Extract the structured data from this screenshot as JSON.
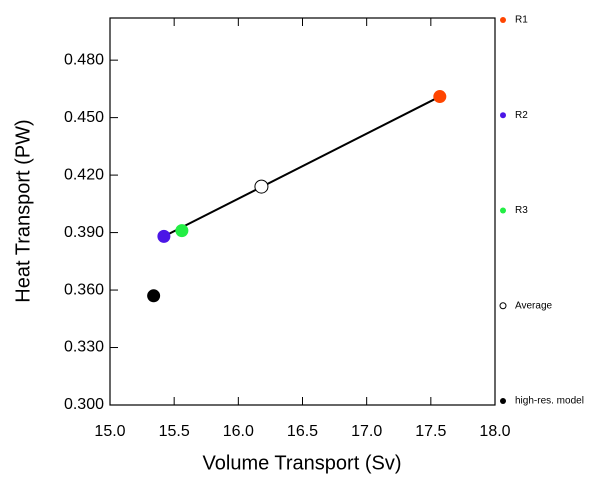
{
  "chart_data": {
    "type": "scatter",
    "x_label": "Volume Transport (Sv)",
    "y_label": "Heat Transport (PW)",
    "xlim": [
      15.0,
      18.0
    ],
    "ylim": [
      0.3,
      0.502
    ],
    "xticks": [
      {
        "value": 15,
        "label": "15.0"
      },
      {
        "value": 15.5,
        "label": "15.5"
      },
      {
        "value": 16,
        "label": "16.0"
      },
      {
        "value": 16.5,
        "label": "16.5"
      },
      {
        "value": 17,
        "label": "17.0"
      },
      {
        "value": 17.5,
        "label": "17.5"
      },
      {
        "value": 18,
        "label": "18.0"
      }
    ],
    "yticks": [
      {
        "value": 0.3,
        "label": "0.300"
      },
      {
        "value": 0.33,
        "label": "0.330"
      },
      {
        "value": 0.36,
        "label": "0.360"
      },
      {
        "value": 0.39,
        "label": "0.390"
      },
      {
        "value": 0.42,
        "label": "0.420"
      },
      {
        "value": 0.45,
        "label": "0.450"
      },
      {
        "value": 0.48,
        "label": "0.480"
      }
    ],
    "fit_line": {
      "x": [
        15.42,
        17.57
      ],
      "y": [
        0.388,
        0.461
      ],
      "color": "#000000"
    },
    "series": [
      {
        "name": "R1",
        "color": "#ff4500",
        "open": false,
        "x": [
          17.57
        ],
        "values": [
          0.461
        ]
      },
      {
        "name": "R2",
        "color": "#4b16e6",
        "open": false,
        "x": [
          15.42
        ],
        "values": [
          0.388
        ]
      },
      {
        "name": "R3",
        "color": "#22ee44",
        "open": false,
        "x": [
          15.56
        ],
        "values": [
          0.391
        ]
      },
      {
        "name": "Average",
        "color": "#000000",
        "open": true,
        "x": [
          16.18
        ],
        "values": [
          0.414
        ]
      },
      {
        "name": "high-res. model",
        "color": "#000000",
        "open": false,
        "x": [
          15.34
        ],
        "values": [
          0.357
        ]
      }
    ]
  }
}
